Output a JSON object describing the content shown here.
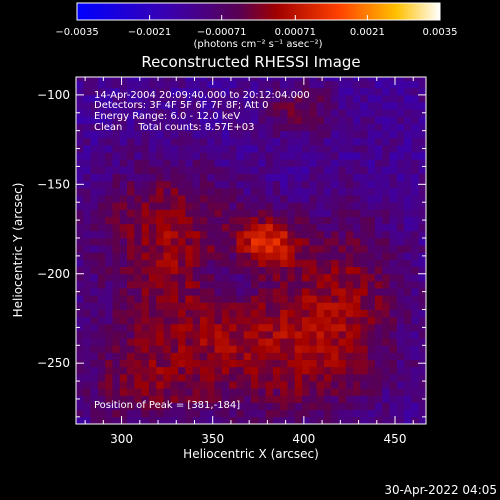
{
  "chart_data": {
    "type": "heatmap",
    "title": "Reconstructed RHESSI Image",
    "xlabel": "Heliocentric X (arcsec)",
    "ylabel": "Heliocentric Y (arcsec)",
    "xlim": [
      275,
      467
    ],
    "ylim": [
      -284,
      -90
    ],
    "x_ticks": [
      {
        "value": 300,
        "label": "300"
      },
      {
        "value": 350,
        "label": "350"
      },
      {
        "value": 400,
        "label": "400"
      },
      {
        "value": 450,
        "label": "450"
      }
    ],
    "y_ticks": [
      {
        "value": -100,
        "label": "−100"
      },
      {
        "value": -150,
        "label": "−150"
      },
      {
        "value": -200,
        "label": "−200"
      },
      {
        "value": -250,
        "label": "−250"
      }
    ],
    "colorbar": {
      "range": [
        -0.0035,
        0.0035
      ],
      "ticks": [
        {
          "value": -0.0035,
          "label": "−0.0035"
        },
        {
          "value": -0.0021,
          "label": "−0.0021"
        },
        {
          "value": -0.00071,
          "label": "−0.00071"
        },
        {
          "value": 0.00071,
          "label": "0.00071"
        },
        {
          "value": 0.0021,
          "label": "0.0021"
        },
        {
          "value": 0.0035,
          "label": "0.0035"
        }
      ],
      "unit_label": "(photons cm⁻² s⁻¹ asec⁻²)"
    },
    "annotations": [
      "14-Apr-2004 20:09:40.000 to 20:12:04.000",
      "Detectors: 3F 4F 5F 6F 7F 8F; Att 0",
      "Energy Range: 6.0 - 12.0 keV",
      "Clean     Total counts: 8.57E+03"
    ],
    "peak_label": "Position of Peak = [381,-184]",
    "peak": [
      381,
      -184
    ],
    "source_blobs": [
      {
        "x": 378,
        "y": -184,
        "sx": 12,
        "sy": 10,
        "amp": 0.002
      },
      {
        "x": 340,
        "y": -225,
        "sx": 35,
        "sy": 35,
        "amp": 0.0014
      },
      {
        "x": 400,
        "y": -245,
        "sx": 30,
        "sy": 28,
        "amp": 0.0012
      },
      {
        "x": 320,
        "y": -170,
        "sx": 25,
        "sy": 22,
        "amp": 0.0011
      },
      {
        "x": 425,
        "y": -205,
        "sx": 20,
        "sy": 30,
        "amp": 0.001
      },
      {
        "x": 305,
        "y": -265,
        "sx": 22,
        "sy": 16,
        "amp": 0.0008
      },
      {
        "x": 395,
        "y": -110,
        "sx": 14,
        "sy": 10,
        "amp": 0.0011
      },
      {
        "x": 358,
        "y": -205,
        "sx": 14,
        "sy": 14,
        "amp": -0.0009
      }
    ],
    "background_level": -0.0013,
    "grid": false
  },
  "footer": {
    "timestamp": "30-Apr-2022 04:05"
  }
}
